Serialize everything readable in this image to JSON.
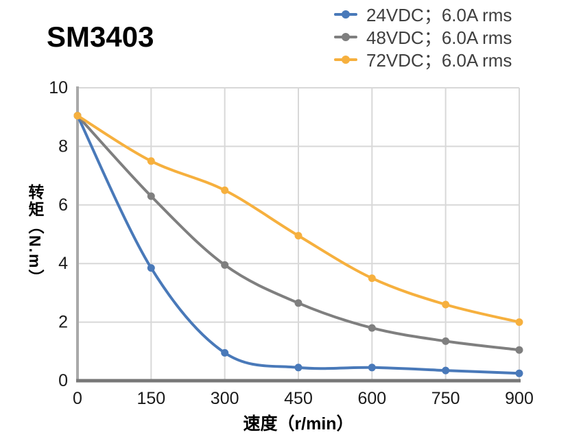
{
  "title": "SM3403",
  "legend": [
    {
      "label": "24VDC；6.0A rms",
      "color": "#4979B9"
    },
    {
      "label": "48VDC；6.0A rms",
      "color": "#7F7F7F"
    },
    {
      "label": "72VDC；6.0A rms",
      "color": "#F6B03E"
    }
  ],
  "chart_data": {
    "type": "line",
    "title": "SM3403",
    "x": [
      0,
      150,
      300,
      450,
      600,
      750,
      900
    ],
    "series": [
      {
        "name": "24VDC；6.0A rms",
        "color": "#4979B9",
        "values": [
          9.05,
          3.85,
          0.95,
          0.45,
          0.45,
          0.35,
          0.25
        ]
      },
      {
        "name": "48VDC；6.0A rms",
        "color": "#7F7F7F",
        "values": [
          9.05,
          6.3,
          3.95,
          2.65,
          1.8,
          1.35,
          1.05
        ]
      },
      {
        "name": "72VDC；6.0A rms",
        "color": "#F6B03E",
        "values": [
          9.05,
          7.5,
          6.5,
          4.95,
          3.5,
          2.6,
          2.0
        ]
      }
    ],
    "xlabel": "速度（r/min）",
    "ylabel": "转矩（N.m）",
    "xlim": [
      0,
      900
    ],
    "ylim": [
      0,
      10
    ],
    "x_ticks": [
      0,
      150,
      300,
      450,
      600,
      750,
      900
    ],
    "y_ticks": [
      0,
      2,
      4,
      6,
      8,
      10
    ],
    "grid": true,
    "legend_position": "top-right"
  },
  "colors": {
    "grid": "#D8D8D8",
    "x_axis": "#787878",
    "y_axis": "#A9A9A9",
    "tick_text": "#1a1a1a"
  }
}
